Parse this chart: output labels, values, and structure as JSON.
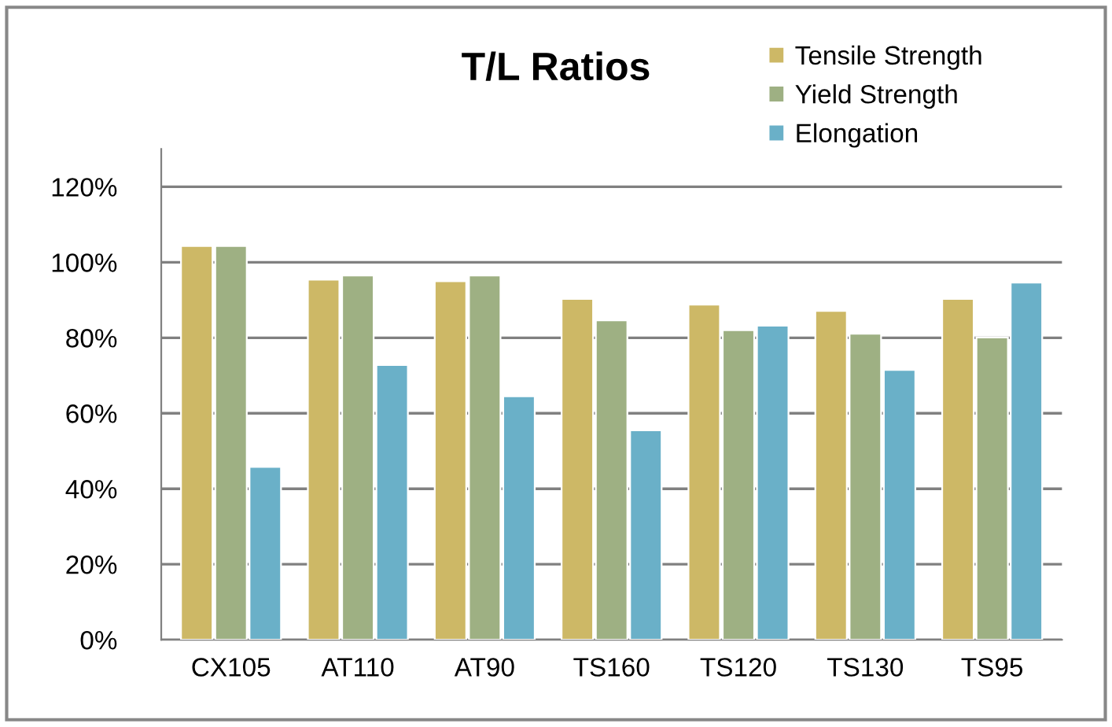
{
  "chart_data": {
    "type": "bar",
    "title": "T/L Ratios",
    "categories": [
      "CX105",
      "AT110",
      "AT90",
      "TS160",
      "TS120",
      "TS130",
      "TS95"
    ],
    "series": [
      {
        "name": "Tensile Strength",
        "color": "#cdb866",
        "values": [
          104.3,
          95.4,
          95.0,
          90.3,
          88.8,
          87.1,
          90.3
        ]
      },
      {
        "name": "Yield Strength",
        "color": "#9eb083",
        "values": [
          104.3,
          96.5,
          96.5,
          84.6,
          82.0,
          81.1,
          80.1
        ]
      },
      {
        "name": "Elongation",
        "color": "#6ab0c8",
        "values": [
          45.8,
          72.8,
          64.5,
          55.5,
          83.2,
          71.5,
          94.6
        ]
      }
    ],
    "ylim": [
      0,
      130
    ],
    "yticks": [
      {
        "value": 0,
        "label": "0%"
      },
      {
        "value": 20,
        "label": "20%"
      },
      {
        "value": 40,
        "label": "40%"
      },
      {
        "value": 60,
        "label": "60%"
      },
      {
        "value": 80,
        "label": "80%"
      },
      {
        "value": 100,
        "label": "100%"
      },
      {
        "value": 120,
        "label": "120%"
      }
    ],
    "grid": "y",
    "legend": "top right"
  }
}
